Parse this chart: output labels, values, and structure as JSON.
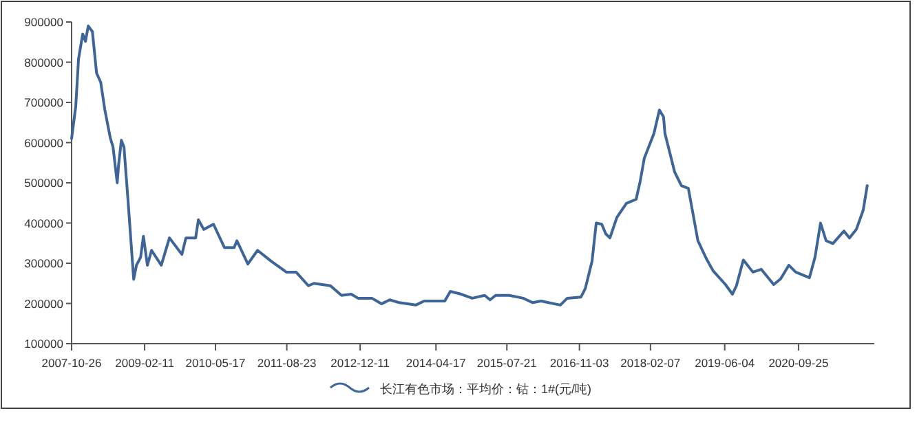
{
  "chart_data": {
    "type": "line",
    "legend": "bottom",
    "grid": false,
    "marker": "none",
    "line_style": "solid",
    "xlim": [
      "2007-10-26",
      "2022-01-30"
    ],
    "xticks": [
      "2007-10-26",
      "2009-02-11",
      "2010-05-17",
      "2011-08-23",
      "2012-12-11",
      "2014-04-17",
      "2015-07-21",
      "2016-11-03",
      "2018-02-07",
      "2019-06-04",
      "2020-09-25"
    ],
    "ylim": [
      100000,
      900000
    ],
    "yticks": [
      100000,
      200000,
      300000,
      400000,
      500000,
      600000,
      700000,
      800000,
      900000
    ],
    "x": [
      "2007-10-26",
      "2007-11-22",
      "2007-12-10",
      "2008-01-06",
      "2008-01-24",
      "2008-02-11",
      "2008-03-09",
      "2008-04-05",
      "2008-05-02",
      "2008-05-29",
      "2008-07-03",
      "2008-07-21",
      "2008-08-17",
      "2008-08-26",
      "2008-09-13",
      "2008-09-30",
      "2008-10-27",
      "2008-12-02",
      "2008-12-20",
      "2009-01-16",
      "2009-02-03",
      "2009-03-01",
      "2009-03-28",
      "2009-05-30",
      "2009-07-22",
      "2009-10-11",
      "2009-11-06",
      "2010-01-08",
      "2010-01-26",
      "2010-03-02",
      "2010-05-04",
      "2010-07-14",
      "2010-09-15",
      "2010-10-03",
      "2010-12-13",
      "2011-02-14",
      "2011-05-14",
      "2011-08-20",
      "2011-10-22",
      "2012-01-10",
      "2012-02-15",
      "2012-06-01",
      "2012-08-12",
      "2012-10-14",
      "2012-11-27",
      "2013-02-25",
      "2013-04-28",
      "2013-06-21",
      "2013-08-22",
      "2013-12-07",
      "2014-01-30",
      "2014-06-13",
      "2014-07-19",
      "2014-09-28",
      "2014-12-08",
      "2015-02-27",
      "2015-04-03",
      "2015-05-09",
      "2015-08-06",
      "2015-11-04",
      "2016-01-05",
      "2016-02-28",
      "2016-07-02",
      "2016-08-16",
      "2016-11-13",
      "2016-12-11",
      "2017-01-24",
      "2017-02-20",
      "2017-03-28",
      "2017-04-23",
      "2017-05-20",
      "2017-07-04",
      "2017-09-04",
      "2017-11-06",
      "2017-12-02",
      "2017-12-29",
      "2018-03-02",
      "2018-04-06",
      "2018-05-03",
      "2018-05-12",
      "2018-07-14",
      "2018-08-27",
      "2018-10-11",
      "2018-12-12",
      "2019-02-04",
      "2019-03-21",
      "2019-06-09",
      "2019-07-24",
      "2019-08-19",
      "2019-10-03",
      "2019-12-04",
      "2020-01-27",
      "2020-04-17",
      "2020-06-01",
      "2020-07-24",
      "2020-09-07",
      "2020-12-05",
      "2021-01-10",
      "2021-02-15",
      "2021-03-23",
      "2021-05-06",
      "2021-07-17",
      "2021-08-22",
      "2021-10-05",
      "2021-11-19",
      "2021-12-15"
    ],
    "series": [
      {
        "name": "长江有色市场：平均价：钴：1#(元/吨)",
        "color": "#3d6598",
        "values": [
          610000,
          690000,
          808000,
          870000,
          852000,
          890000,
          876000,
          773000,
          750000,
          681000,
          612000,
          589000,
          500000,
          544000,
          606000,
          589000,
          452000,
          260000,
          295000,
          315000,
          367000,
          295000,
          332000,
          295000,
          363000,
          322000,
          363000,
          363000,
          408000,
          384000,
          397000,
          339000,
          339000,
          356000,
          298000,
          332000,
          305000,
          278000,
          278000,
          244000,
          250000,
          244000,
          220000,
          223000,
          213000,
          213000,
          199000,
          209000,
          202000,
          196000,
          206000,
          206000,
          230000,
          223000,
          213000,
          220000,
          209000,
          220000,
          220000,
          213000,
          202000,
          206000,
          196000,
          213000,
          216000,
          237000,
          305000,
          400000,
          397000,
          373000,
          363000,
          414000,
          449000,
          459000,
          503000,
          561000,
          623000,
          681000,
          664000,
          623000,
          527000,
          493000,
          486000,
          356000,
          312000,
          281000,
          247000,
          223000,
          244000,
          308000,
          278000,
          285000,
          247000,
          261000,
          295000,
          278000,
          264000,
          315000,
          400000,
          356000,
          349000,
          380000,
          363000,
          384000,
          432000,
          493000
        ]
      }
    ]
  }
}
